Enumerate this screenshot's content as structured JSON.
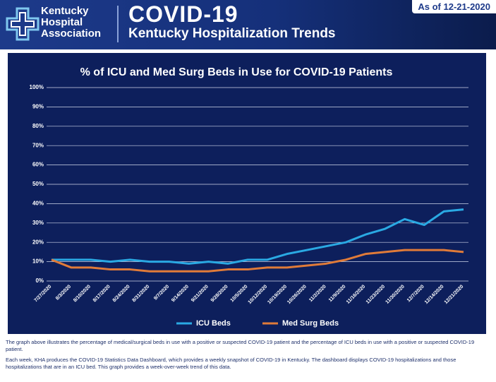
{
  "header": {
    "logo": [
      "Kentucky",
      "Hospital",
      "Association"
    ],
    "title": "COVID-19",
    "subtitle": "Kentucky Hospitalization Trends",
    "date": "As of 12-21-2020"
  },
  "chart_data": {
    "type": "line",
    "title": "% of ICU and Med Surg Beds in Use for COVID-19 Patients",
    "categories": [
      "7/27/2020",
      "8/3/2020",
      "8/10/2020",
      "8/17/2020",
      "8/24/2020",
      "8/31/2020",
      "9/7/2020",
      "9/14/2020",
      "9/21/2020",
      "9/28/2020",
      "10/5/2020",
      "10/12/2020",
      "10/19/2020",
      "10/26/2020",
      "11/2/2020",
      "11/9/2020",
      "11/16/2020",
      "11/23/2020",
      "11/30/2020",
      "12/7/2020",
      "12/14/2020",
      "12/21/2020"
    ],
    "series": [
      {
        "name": "ICU Beds",
        "color": "#2aa9e3",
        "values": [
          11,
          11,
          11,
          10,
          11,
          10,
          10,
          9,
          10,
          9,
          11,
          11,
          14,
          16,
          18,
          20,
          24,
          27,
          32,
          29,
          36,
          37
        ]
      },
      {
        "name": "Med Surg Beds",
        "color": "#e07b39",
        "values": [
          11,
          7,
          7,
          6,
          6,
          5,
          5,
          5,
          5,
          6,
          6,
          7,
          7,
          8,
          9,
          11,
          14,
          15,
          16,
          16,
          16,
          15
        ]
      }
    ],
    "ylim": [
      0,
      100
    ],
    "yticks": [
      {
        "value": 0,
        "label": "0%"
      },
      {
        "value": 10,
        "label": "10%"
      },
      {
        "value": 20,
        "label": "20%"
      },
      {
        "value": 30,
        "label": "30%"
      },
      {
        "value": 40,
        "label": "40%"
      },
      {
        "value": 50,
        "label": "50%"
      },
      {
        "value": 60,
        "label": "60%"
      },
      {
        "value": 70,
        "label": "70%"
      },
      {
        "value": 80,
        "label": "80%"
      },
      {
        "value": 90,
        "label": "90%"
      },
      {
        "value": 100,
        "label": "100%"
      }
    ],
    "grid": true,
    "legend": "bottom"
  },
  "footer": {
    "paragraphs": [
      "The graph above illustrates the percentage of medical/surgical beds in use with a positive or suspected COVID-19 patient and the percentage of ICU beds in use with a positive or suspected COVID-19 patient.",
      "Each week, KHA produces the COVID-19 Statistics Data Dashboard, which provides a weekly snapshot of COVID-19 in Kentucky. The dashboard displays COVID-19 hospitalizations and those hospitalizations that are in an ICU bed. This graph provides a week-over-week trend of this data."
    ]
  }
}
